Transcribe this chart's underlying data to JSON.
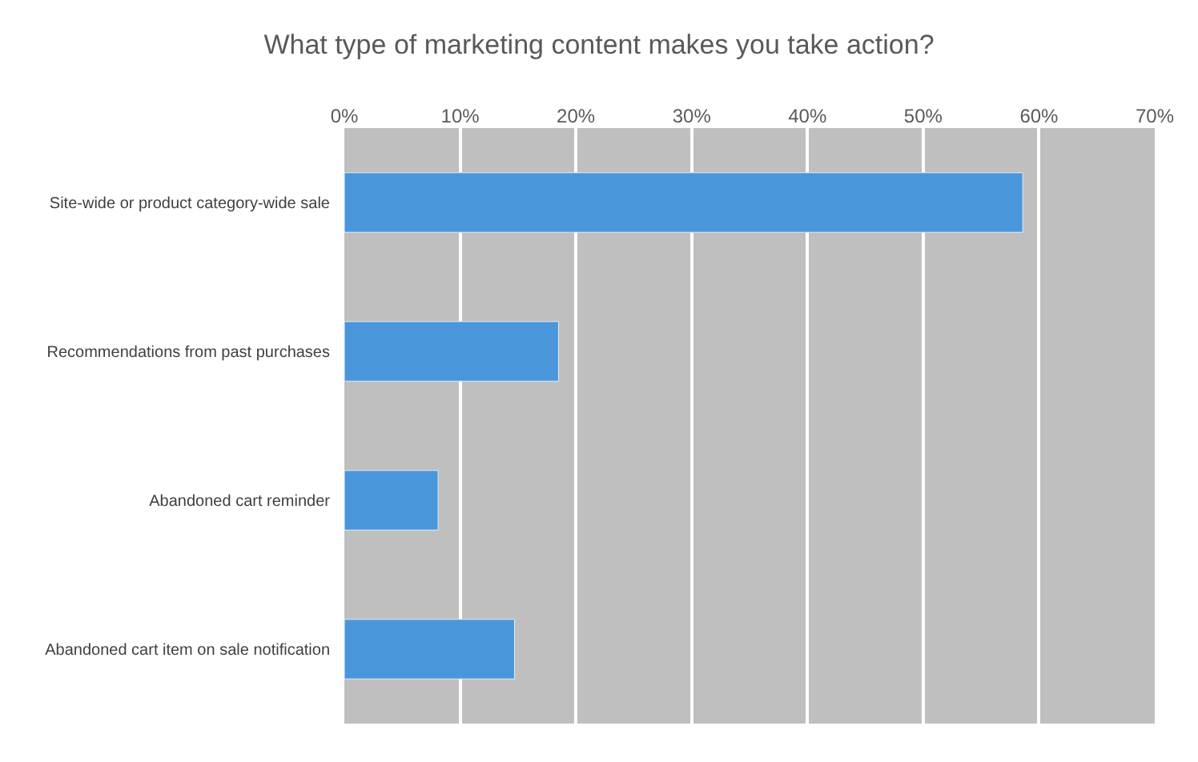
{
  "chart_data": {
    "type": "bar",
    "orientation": "horizontal",
    "title": "What type of marketing content makes you take action?",
    "categories": [
      "Site-wide or product category-wide sale",
      "Recommendations from past purchases",
      "Abandoned cart reminder",
      "Abandoned cart item on sale notification"
    ],
    "values": [
      58.6,
      18.5,
      8.1,
      14.7
    ],
    "color": "#4a96db",
    "xlim": [
      0,
      70
    ],
    "xticks": [
      {
        "value": 0,
        "label": "0%"
      },
      {
        "value": 10,
        "label": "10%"
      },
      {
        "value": 20,
        "label": "20%"
      },
      {
        "value": 30,
        "label": "30%"
      },
      {
        "value": 40,
        "label": "40%"
      },
      {
        "value": 50,
        "label": "50%"
      },
      {
        "value": 60,
        "label": "60%"
      },
      {
        "value": 70,
        "label": "70%"
      }
    ],
    "grid": "x",
    "legend": false
  }
}
